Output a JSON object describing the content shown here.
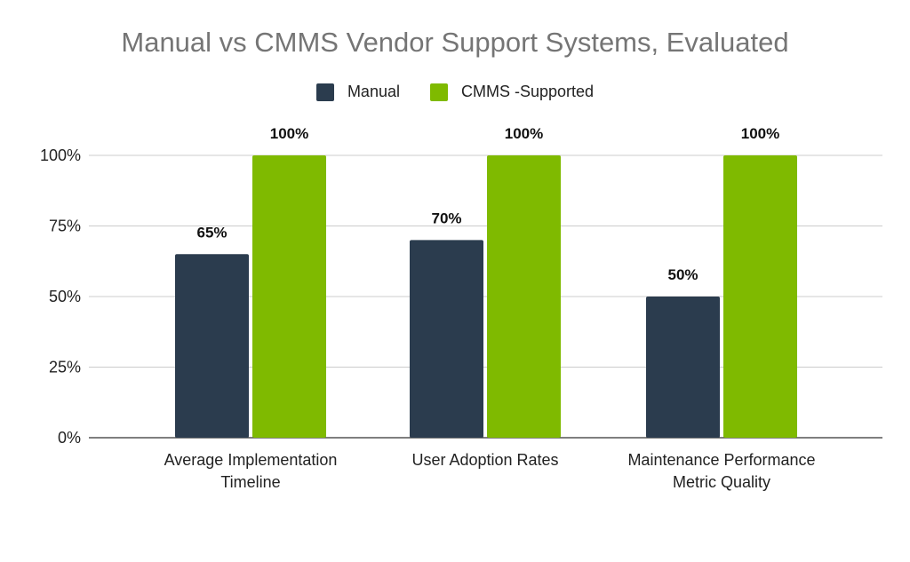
{
  "chart_data": {
    "type": "bar",
    "title": "Manual vs CMMS Vendor Support Systems, Evaluated",
    "categories": [
      "Average Implementation Timeline",
      "User Adoption Rates",
      "Maintenance Performance Metric Quality"
    ],
    "series": [
      {
        "name": "Manual",
        "values": [
          65,
          70,
          50
        ],
        "color": "#2b3c4e"
      },
      {
        "name": "CMMS -Supported",
        "values": [
          100,
          100,
          100
        ],
        "color": "#7fba00"
      }
    ],
    "ylim": [
      0,
      100
    ],
    "yticks": [
      "0%",
      "25%",
      "50%",
      "75%",
      "100%"
    ],
    "ytick_values": [
      0,
      25,
      50,
      75,
      100
    ],
    "data_labels": [
      [
        "65%",
        "70%",
        "50%"
      ],
      [
        "100%",
        "100%",
        "100%"
      ]
    ],
    "xlabel": "",
    "ylabel": "",
    "grid": true,
    "legend": "top-center"
  }
}
